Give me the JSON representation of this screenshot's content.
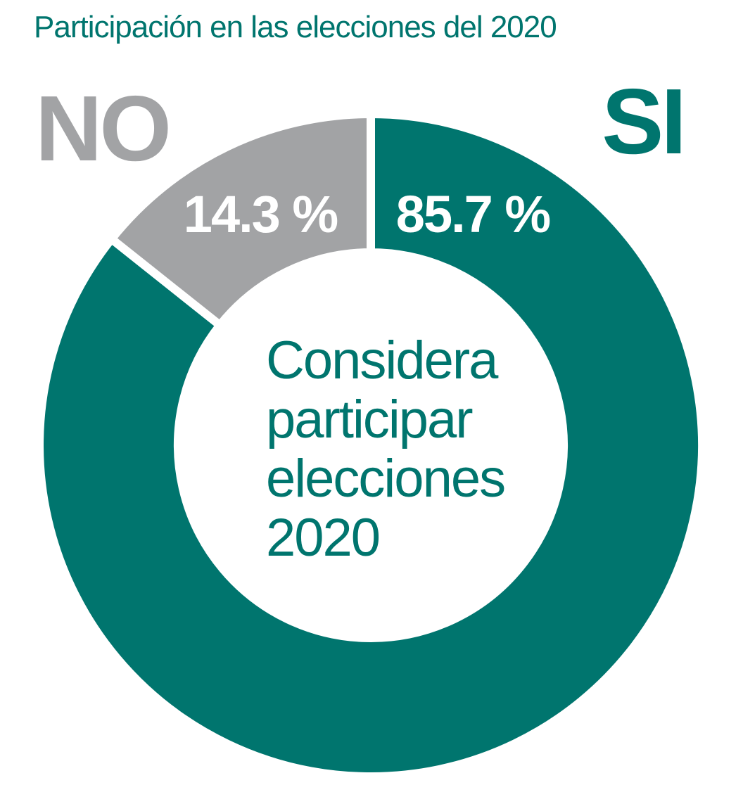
{
  "colors": {
    "accent": "#00756e",
    "no_color": "#a2a3a5",
    "background": "#ffffff"
  },
  "chart_data": {
    "type": "pie",
    "title": "Participación en las elecciones del 2020",
    "center_label": [
      "Considera",
      "participar",
      "elecciones",
      "2020"
    ],
    "slices": [
      {
        "label": "SI",
        "value": 85.7,
        "value_label": "85.7 %",
        "color": "#00756e"
      },
      {
        "label": "NO",
        "value": 14.3,
        "value_label": "14.3 %",
        "color": "#a2a3a5"
      }
    ]
  }
}
